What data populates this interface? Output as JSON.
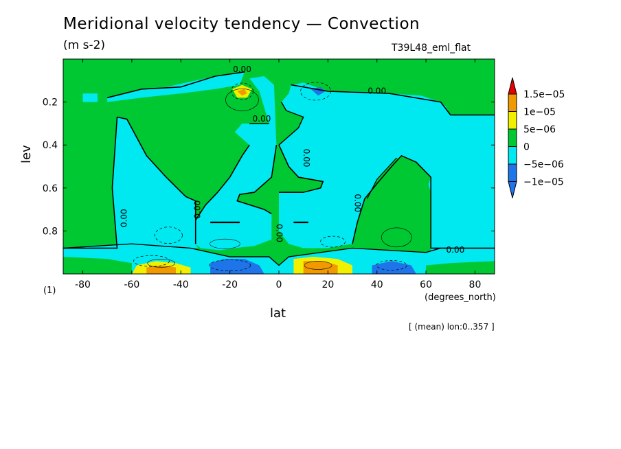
{
  "chart_data": {
    "type": "heatmap",
    "title": "Meridional velocity tendency — Convection",
    "units": "(m s-2)",
    "run_name": "T39L48_eml_flat",
    "xlabel": "lat",
    "x_units": "(degrees_north)",
    "ylabel": "lev",
    "panel_id": "(1)",
    "note": "[ (mean) lon:0..357 ]",
    "xlim": [
      -88,
      88
    ],
    "ylim": [
      1.0,
      0.0
    ],
    "x_ticks": [
      -80,
      -60,
      -40,
      -20,
      0,
      20,
      40,
      60,
      80
    ],
    "x_tick_labels": [
      "-80",
      "-60",
      "-40",
      "-20",
      "0",
      "20",
      "40",
      "60",
      "80"
    ],
    "y_ticks": [
      0.2,
      0.4,
      0.6,
      0.8
    ],
    "y_tick_labels": [
      "0.2",
      "0.4",
      "0.6",
      "0.8"
    ],
    "contour_label": "0.00",
    "colorbar": {
      "levels": [
        -1e-05,
        -5e-06,
        0,
        5e-06,
        1e-05,
        1.5e-05
      ],
      "labels": [
        "−1e−05",
        "−5e−06",
        "0",
        "5e−06",
        "1e−05",
        "1.5e−05"
      ],
      "colors": [
        "#1e74e8",
        "#1e74e8",
        "#00e8f0",
        "#00c832",
        "#f0f000",
        "#f09a00",
        "#e60000"
      ]
    },
    "regions": {
      "background_color": "#00c832",
      "negative_color": "#00e8f0",
      "strong_negative_color": "#1e74e8",
      "positive_color": "#f0f000",
      "strong_positive_color": "#f09a00"
    }
  }
}
